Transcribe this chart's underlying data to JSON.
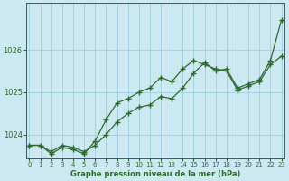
{
  "title": "Graphe pression niveau de la mer (hPa)",
  "bg_color": "#cce8f0",
  "grid_color": "#9ecfdf",
  "line_color": "#2d6b2d",
  "x_ticks": [
    0,
    1,
    2,
    3,
    4,
    5,
    6,
    7,
    8,
    9,
    10,
    11,
    12,
    13,
    14,
    15,
    16,
    17,
    18,
    19,
    20,
    21,
    22,
    23
  ],
  "y_ticks": [
    1024,
    1025,
    1026
  ],
  "ylim": [
    1023.45,
    1027.1
  ],
  "xlim": [
    -0.3,
    23.3
  ],
  "line1_x": [
    0,
    1,
    2,
    3,
    4,
    5,
    6,
    7,
    8,
    9,
    10,
    11,
    12,
    13,
    14,
    15,
    16,
    17,
    18,
    19,
    20,
    21,
    22,
    23
  ],
  "line1_y": [
    1023.75,
    1023.75,
    1023.55,
    1023.7,
    1023.65,
    1023.55,
    1023.85,
    1024.35,
    1024.75,
    1024.85,
    1025.0,
    1025.1,
    1025.35,
    1025.25,
    1025.55,
    1025.75,
    1025.65,
    1025.55,
    1025.5,
    1025.05,
    1025.15,
    1025.25,
    1025.65,
    1025.85
  ],
  "line2_x": [
    0,
    1,
    2,
    3,
    4,
    5,
    6,
    7,
    8,
    9,
    10,
    11,
    12,
    13,
    14,
    15,
    16,
    17,
    18,
    19,
    20,
    21,
    22,
    23
  ],
  "line2_y": [
    1023.75,
    1023.75,
    1023.6,
    1023.75,
    1023.7,
    1023.6,
    1023.75,
    1024.0,
    1024.3,
    1024.5,
    1024.65,
    1024.7,
    1024.9,
    1024.85,
    1025.1,
    1025.45,
    1025.7,
    1025.5,
    1025.55,
    1025.1,
    1025.2,
    1025.3,
    1025.75,
    1026.7
  ]
}
